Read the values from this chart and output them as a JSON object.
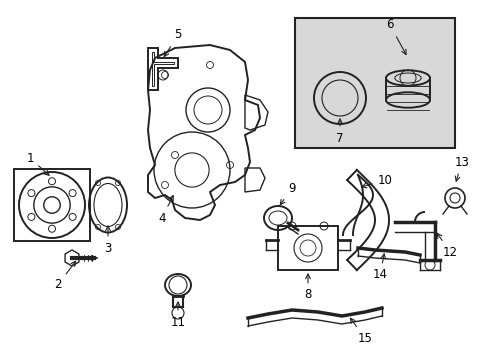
{
  "bg_color": "#ffffff",
  "line_color": "#222222",
  "label_color": "#000000",
  "box_bg": "#d8d8d8",
  "fig_width": 4.9,
  "fig_height": 3.6,
  "dpi": 100
}
